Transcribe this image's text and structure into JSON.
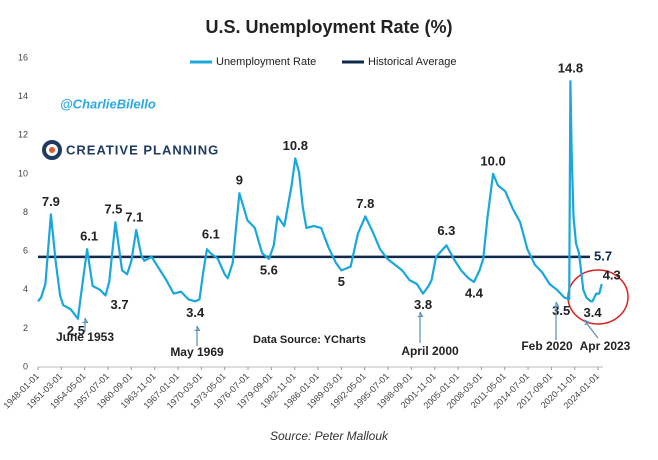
{
  "chart_data": {
    "type": "line",
    "title": "U.S. Unemployment Rate (%)",
    "handle": "@CharlieBilello",
    "brand": "CREATIVE PLANNING",
    "data_source": "Data Source: YCharts",
    "footer": "Source: Peter Mallouk",
    "x": [
      "1948-01-01",
      "1948-06-01",
      "1949-01-01",
      "1949-10-01",
      "1950-06-01",
      "1951-01-01",
      "1951-06-01",
      "1952-06-01",
      "1953-06-01",
      "1953-10-01",
      "1954-09-01",
      "1955-06-01",
      "1956-06-01",
      "1957-03-01",
      "1957-09-01",
      "1958-07-01",
      "1959-06-01",
      "1960-02-01",
      "1960-09-01",
      "1961-05-01",
      "1962-01-01",
      "1962-06-01",
      "1963-06-01",
      "1964-06-01",
      "1965-06-01",
      "1966-06-01",
      "1967-06-01",
      "1968-06-01",
      "1969-05-01",
      "1969-12-01",
      "1970-06-01",
      "1970-12-01",
      "1971-06-01",
      "1972-06-01",
      "1973-05-01",
      "1973-10-01",
      "1974-06-01",
      "1975-05-01",
      "1976-06-01",
      "1977-06-01",
      "1978-06-01",
      "1979-05-01",
      "1980-01-01",
      "1980-07-01",
      "1981-06-01",
      "1982-06-01",
      "1982-12-01",
      "1983-06-01",
      "1983-12-01",
      "1984-06-01",
      "1985-06-01",
      "1986-06-01",
      "1987-06-01",
      "1988-06-01",
      "1989-03-01",
      "1990-06-01",
      "1991-06-01",
      "1992-06-01",
      "1993-06-01",
      "1994-06-01",
      "1995-06-01",
      "1996-06-01",
      "1997-06-01",
      "1998-06-01",
      "1999-06-01",
      "2000-04-01",
      "2001-01-01",
      "2001-06-01",
      "2002-01-01",
      "2003-06-01",
      "2004-06-01",
      "2005-06-01",
      "2006-06-01",
      "2007-03-01",
      "2007-12-01",
      "2008-06-01",
      "2009-01-01",
      "2009-10-01",
      "2010-06-01",
      "2011-06-01",
      "2012-06-01",
      "2013-06-01",
      "2014-06-01",
      "2015-06-01",
      "2016-06-01",
      "2017-06-01",
      "2018-06-01",
      "2019-06-01",
      "2020-02-01",
      "2020-04-01",
      "2020-06-01",
      "2020-09-01",
      "2021-01-01",
      "2021-06-01",
      "2022-01-01",
      "2022-06-01",
      "2023-01-01",
      "2023-04-01",
      "2023-10-01",
      "2024-03-01",
      "2024-07-01"
    ],
    "series": [
      {
        "name": "Unemployment Rate",
        "color": "#1aa7dc",
        "values": [
          3.4,
          3.6,
          4.3,
          7.9,
          5.4,
          3.7,
          3.2,
          3.0,
          2.5,
          3.5,
          6.1,
          4.2,
          4.0,
          3.7,
          4.4,
          7.5,
          5.0,
          4.8,
          5.5,
          7.1,
          5.8,
          5.5,
          5.7,
          5.1,
          4.5,
          3.8,
          3.9,
          3.5,
          3.4,
          3.5,
          4.9,
          6.1,
          5.9,
          5.6,
          4.8,
          4.6,
          5.4,
          9.0,
          7.6,
          7.2,
          5.9,
          5.6,
          6.3,
          7.8,
          7.3,
          9.4,
          10.8,
          10.1,
          8.3,
          7.2,
          7.3,
          7.2,
          6.2,
          5.4,
          5.0,
          5.2,
          6.9,
          7.8,
          7.0,
          6.1,
          5.6,
          5.3,
          5.0,
          4.5,
          4.3,
          3.8,
          4.2,
          4.5,
          5.7,
          6.3,
          5.6,
          5.0,
          4.6,
          4.4,
          5.0,
          5.6,
          7.8,
          10.0,
          9.4,
          9.1,
          8.2,
          7.5,
          6.1,
          5.3,
          4.9,
          4.3,
          4.0,
          3.6,
          3.5,
          14.8,
          11.0,
          7.8,
          6.4,
          5.9,
          4.0,
          3.6,
          3.4,
          3.4,
          3.8,
          3.8,
          4.3
        ]
      }
    ],
    "reference_line": {
      "name": "Historical Average",
      "value": 5.7,
      "color": "#0f2a4a"
    },
    "annotations": [
      {
        "x": "1949-10-01",
        "y": 7.9
      },
      {
        "x": "1953-06-01",
        "y": 2.5
      },
      {
        "x": "1954-09-01",
        "y": 6.1
      },
      {
        "x": "1957-03-01",
        "y": 3.7
      },
      {
        "x": "1958-07-01",
        "y": 7.5
      },
      {
        "x": "1961-05-01",
        "y": 7.1
      },
      {
        "x": "1970-12-01",
        "y": 6.1
      },
      {
        "x": "1969-05-01",
        "y": 3.4
      },
      {
        "x": "1975-05-01",
        "y": 9
      },
      {
        "x": "1979-05-01",
        "y": 5.6
      },
      {
        "x": "1982-12-01",
        "y": 10.8
      },
      {
        "x": "1989-03-01",
        "y": 5
      },
      {
        "x": "1992-06-01",
        "y": 7.8
      },
      {
        "x": "2000-04-01",
        "y": 3.8
      },
      {
        "x": "2003-06-01",
        "y": 6.3
      },
      {
        "x": "2007-03-01",
        "y": 4.4
      },
      {
        "x": "2009-10-01",
        "y": 10,
        "label": "10.0"
      },
      {
        "x": "2020-04-01",
        "y": 14.8
      },
      {
        "x": "2020-02-01",
        "y": 3.5
      },
      {
        "x": "2023-04-01",
        "y": 3.4
      },
      {
        "x": "2024-07-01",
        "y": 4.3
      }
    ],
    "callouts": [
      "June 1953",
      "May 1969",
      "April 2000",
      "Feb 2020",
      "Apr 2023"
    ],
    "xlim": [
      "1948-01-01",
      "2024-09-01"
    ],
    "xticks": [
      "1948-01-01",
      "1951-03-01",
      "1954-05-01",
      "1957-07-01",
      "1960-09-01",
      "1963-11-01",
      "1967-01-01",
      "1970-03-01",
      "1973-05-01",
      "1976-07-01",
      "1979-09-01",
      "1982-11-01",
      "1986-01-01",
      "1989-03-01",
      "1992-05-01",
      "1995-07-01",
      "1998-09-01",
      "2001-11-01",
      "2005-01-01",
      "2008-03-01",
      "2011-05-01",
      "2014-07-01",
      "2017-09-01",
      "2020-11-01",
      "2024-01-01"
    ],
    "ylim": [
      0,
      16
    ],
    "yticks": [
      0,
      2,
      4,
      6,
      8,
      10,
      12,
      14,
      16
    ],
    "grid": false,
    "legend": "top"
  }
}
